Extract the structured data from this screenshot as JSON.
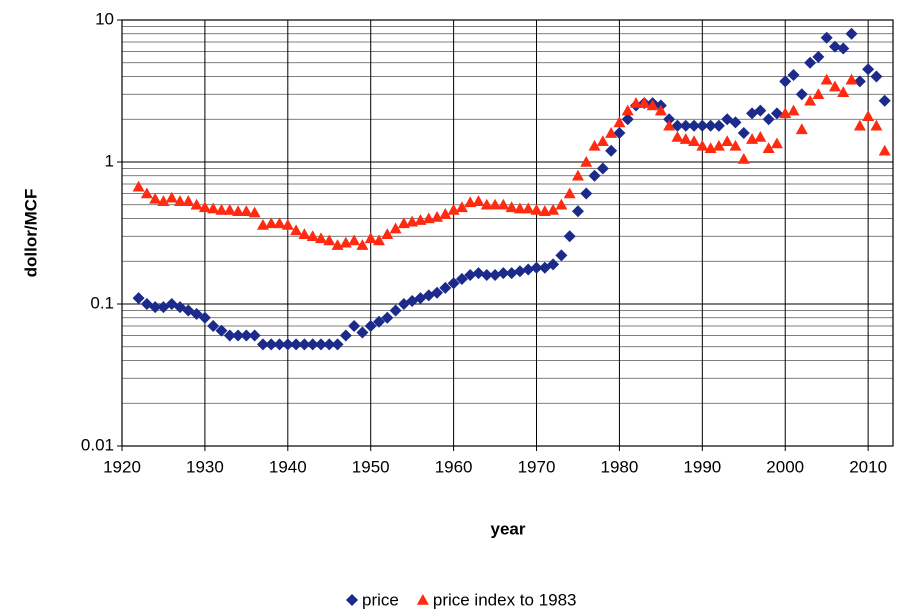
{
  "chart_data": {
    "type": "scatter",
    "log_scale_y": true,
    "grid": true,
    "minor_grid": true,
    "legend_position": "bottom",
    "x_label": "year",
    "y_label": "dollor/MCF",
    "xlim": [
      1920,
      2013
    ],
    "xticks": [
      1920,
      1930,
      1940,
      1950,
      1960,
      1970,
      1980,
      1990,
      2000,
      2010
    ],
    "ylim": [
      0.01,
      10
    ],
    "yticks": [
      0.01,
      0.1,
      1,
      10
    ],
    "x": [
      1922,
      1923,
      1924,
      1925,
      1926,
      1927,
      1928,
      1929,
      1930,
      1931,
      1932,
      1933,
      1934,
      1935,
      1936,
      1937,
      1938,
      1939,
      1940,
      1941,
      1942,
      1943,
      1944,
      1945,
      1946,
      1947,
      1948,
      1949,
      1950,
      1951,
      1952,
      1953,
      1954,
      1955,
      1956,
      1957,
      1958,
      1959,
      1960,
      1961,
      1962,
      1963,
      1964,
      1965,
      1966,
      1967,
      1968,
      1969,
      1970,
      1971,
      1972,
      1973,
      1974,
      1975,
      1976,
      1977,
      1978,
      1979,
      1980,
      1981,
      1982,
      1983,
      1984,
      1985,
      1986,
      1987,
      1988,
      1989,
      1990,
      1991,
      1992,
      1993,
      1994,
      1995,
      1996,
      1997,
      1998,
      1999,
      2000,
      2001,
      2002,
      2003,
      2004,
      2005,
      2006,
      2007,
      2008,
      2009,
      2010,
      2011,
      2012
    ],
    "series": [
      {
        "name": "price",
        "color": "#1c2a8c",
        "marker": "diamond",
        "values": [
          0.11,
          0.1,
          0.095,
          0.095,
          0.1,
          0.095,
          0.09,
          0.085,
          0.08,
          0.07,
          0.065,
          0.06,
          0.06,
          0.06,
          0.06,
          0.052,
          0.052,
          0.052,
          0.052,
          0.052,
          0.052,
          0.052,
          0.052,
          0.052,
          0.052,
          0.06,
          0.07,
          0.063,
          0.07,
          0.075,
          0.08,
          0.09,
          0.1,
          0.105,
          0.11,
          0.115,
          0.12,
          0.13,
          0.14,
          0.15,
          0.16,
          0.165,
          0.16,
          0.16,
          0.165,
          0.165,
          0.17,
          0.175,
          0.18,
          0.18,
          0.19,
          0.22,
          0.3,
          0.45,
          0.6,
          0.8,
          0.9,
          1.2,
          1.6,
          2.0,
          2.5,
          2.6,
          2.6,
          2.5,
          2.0,
          1.8,
          1.8,
          1.8,
          1.8,
          1.8,
          1.8,
          2.0,
          1.9,
          1.6,
          2.2,
          2.3,
          2.0,
          2.2,
          3.7,
          4.1,
          3.0,
          5.0,
          5.5,
          7.5,
          6.5,
          6.3,
          8.0,
          3.7,
          4.5,
          4.0,
          2.7
        ]
      },
      {
        "name": "price index to 1983",
        "color": "#ff2a10",
        "marker": "triangle",
        "values": [
          0.67,
          0.6,
          0.55,
          0.53,
          0.56,
          0.53,
          0.53,
          0.5,
          0.48,
          0.47,
          0.46,
          0.46,
          0.45,
          0.45,
          0.44,
          0.36,
          0.37,
          0.37,
          0.36,
          0.33,
          0.31,
          0.3,
          0.29,
          0.28,
          0.26,
          0.27,
          0.28,
          0.26,
          0.29,
          0.28,
          0.31,
          0.34,
          0.37,
          0.38,
          0.39,
          0.4,
          0.41,
          0.43,
          0.46,
          0.48,
          0.52,
          0.53,
          0.5,
          0.5,
          0.5,
          0.48,
          0.47,
          0.47,
          0.46,
          0.45,
          0.46,
          0.5,
          0.6,
          0.8,
          1.0,
          1.3,
          1.4,
          1.6,
          1.9,
          2.3,
          2.6,
          2.6,
          2.5,
          2.3,
          1.8,
          1.5,
          1.45,
          1.4,
          1.3,
          1.25,
          1.3,
          1.4,
          1.3,
          1.05,
          1.45,
          1.5,
          1.25,
          1.35,
          2.2,
          2.3,
          1.7,
          2.7,
          3.0,
          3.8,
          3.4,
          3.1,
          3.8,
          1.8,
          2.1,
          1.8,
          1.2
        ]
      }
    ]
  }
}
